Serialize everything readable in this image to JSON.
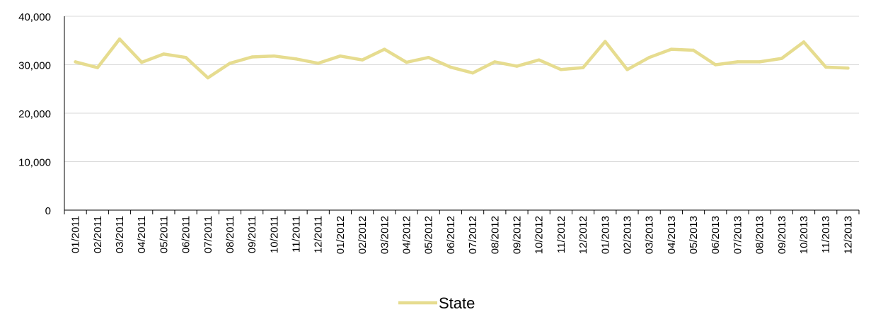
{
  "chart_data": {
    "type": "line",
    "title": "",
    "xlabel": "",
    "ylabel": "",
    "ylim": [
      0,
      40000
    ],
    "yticks": [
      0,
      10000,
      20000,
      30000,
      40000
    ],
    "ytick_labels": [
      "0",
      "10,000",
      "20,000",
      "30,000",
      "40,000"
    ],
    "grid": "horizontal",
    "legend_position": "bottom-center",
    "categories": [
      "01/2011",
      "02/2011",
      "03/2011",
      "04/2011",
      "05/2011",
      "06/2011",
      "07/2011",
      "08/2011",
      "09/2011",
      "10/2011",
      "11/2011",
      "12/2011",
      "01/2012",
      "02/2012",
      "03/2012",
      "04/2012",
      "05/2012",
      "06/2012",
      "07/2012",
      "08/2012",
      "09/2012",
      "10/2012",
      "11/2012",
      "12/2012",
      "01/2013",
      "02/2013",
      "03/2013",
      "04/2013",
      "05/2013",
      "06/2013",
      "07/2013",
      "08/2013",
      "09/2013",
      "10/2013",
      "11/2013",
      "12/2013"
    ],
    "series": [
      {
        "name": "State",
        "color": "#e6dc8f",
        "values": [
          30600,
          29400,
          35300,
          30500,
          32200,
          31500,
          27300,
          30300,
          31600,
          31800,
          31200,
          30300,
          31800,
          31000,
          33200,
          30500,
          31500,
          29500,
          28300,
          30600,
          29700,
          31000,
          29000,
          29400,
          34800,
          29000,
          31500,
          33200,
          33000,
          30000,
          30600,
          30600,
          31300,
          34700,
          29500,
          29300
        ]
      }
    ]
  }
}
